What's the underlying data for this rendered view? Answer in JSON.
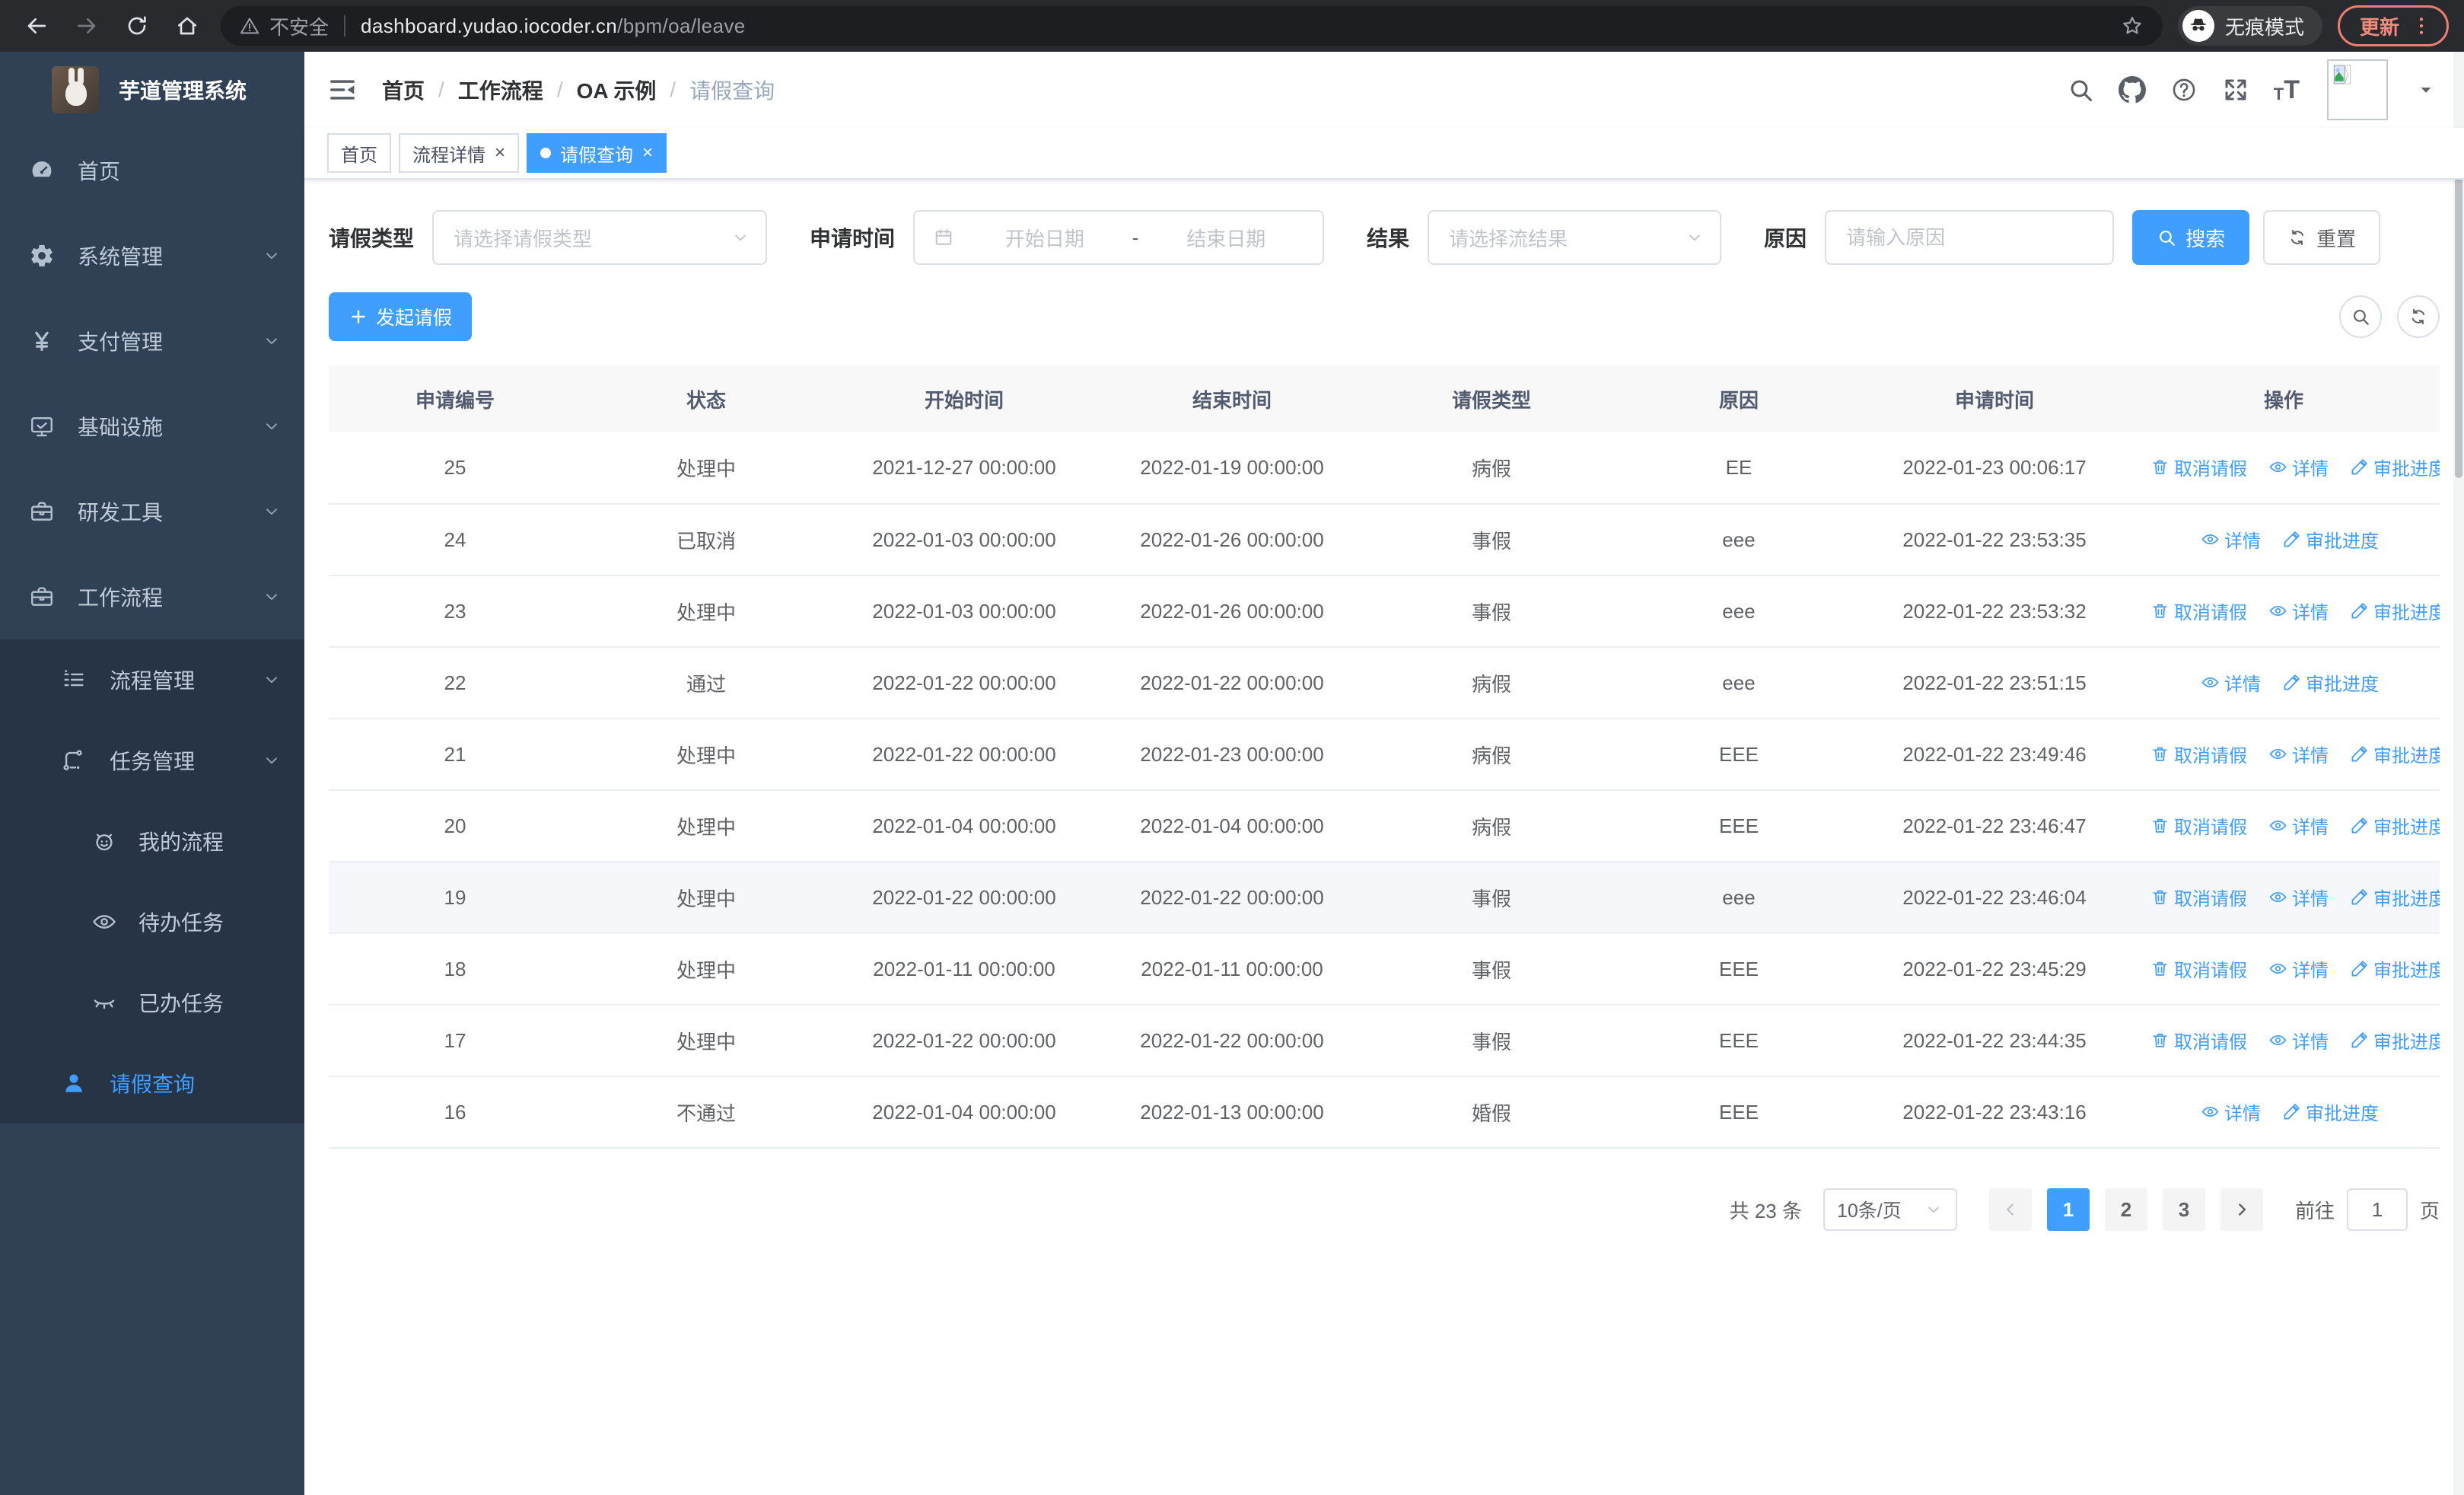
{
  "browser": {
    "security_label": "不安全",
    "url_host": "dashboard.yudao.iocoder.cn",
    "url_path": "/bpm/oa/leave",
    "incognito_label": "无痕模式",
    "update_label": "更新"
  },
  "sidebar": {
    "title": "芋道管理系统",
    "menu": [
      {
        "label": "首页",
        "icon": "dashboard",
        "level": 1,
        "sub": false,
        "active": false,
        "arrow": ""
      },
      {
        "label": "系统管理",
        "icon": "gear",
        "level": 1,
        "sub": false,
        "active": false,
        "arrow": "down"
      },
      {
        "label": "支付管理",
        "icon": "yuan",
        "level": 1,
        "sub": false,
        "active": false,
        "arrow": "down"
      },
      {
        "label": "基础设施",
        "icon": "monitor",
        "level": 1,
        "sub": false,
        "active": false,
        "arrow": "down"
      },
      {
        "label": "研发工具",
        "icon": "toolbox",
        "level": 1,
        "sub": false,
        "active": false,
        "arrow": "down"
      },
      {
        "label": "工作流程",
        "icon": "briefcase",
        "level": 1,
        "sub": false,
        "active": false,
        "arrow": "up"
      },
      {
        "label": "流程管理",
        "icon": "list",
        "level": 2,
        "sub": true,
        "active": false,
        "arrow": "down"
      },
      {
        "label": "任务管理",
        "icon": "flow",
        "level": 2,
        "sub": true,
        "active": false,
        "arrow": "up"
      },
      {
        "label": "我的流程",
        "icon": "face",
        "level": 3,
        "sub": true,
        "active": false,
        "arrow": ""
      },
      {
        "label": "待办任务",
        "icon": "eye",
        "level": 3,
        "sub": true,
        "active": false,
        "arrow": ""
      },
      {
        "label": "已办任务",
        "icon": "eye-closed",
        "level": 3,
        "sub": true,
        "active": false,
        "arrow": ""
      },
      {
        "label": "请假查询",
        "icon": "user",
        "level": 2,
        "sub": true,
        "active": true,
        "arrow": ""
      }
    ]
  },
  "header": {
    "breadcrumb": [
      "首页",
      "工作流程",
      "OA 示例",
      "请假查询"
    ]
  },
  "tabs": [
    {
      "label": "首页",
      "closable": false,
      "active": false
    },
    {
      "label": "流程详情",
      "closable": true,
      "active": false
    },
    {
      "label": "请假查询",
      "closable": true,
      "active": true
    }
  ],
  "filters": {
    "type_label": "请假类型",
    "type_placeholder": "请选择请假类型",
    "time_label": "申请时间",
    "start_placeholder": "开始日期",
    "range_separator": "-",
    "end_placeholder": "结束日期",
    "result_label": "结果",
    "result_placeholder": "请选择流结果",
    "reason_label": "原因",
    "reason_placeholder": "请输入原因",
    "search_label": "搜索",
    "reset_label": "重置"
  },
  "toolbar": {
    "create_label": "发起请假"
  },
  "table": {
    "columns": [
      "申请编号",
      "状态",
      "开始时间",
      "结束时间",
      "请假类型",
      "原因",
      "申请时间",
      "操作"
    ],
    "action_labels": {
      "cancel": "取消请假",
      "detail": "详情",
      "progress": "审批进度"
    },
    "rows": [
      {
        "id": "25",
        "status": "处理中",
        "start": "2021-12-27 00:00:00",
        "end": "2022-01-19 00:00:00",
        "type": "病假",
        "reason": "EE",
        "apply_time": "2022-01-23 00:06:17",
        "actions": [
          "cancel",
          "detail",
          "progress"
        ],
        "highlight": false
      },
      {
        "id": "24",
        "status": "已取消",
        "start": "2022-01-03 00:00:00",
        "end": "2022-01-26 00:00:00",
        "type": "事假",
        "reason": "eee",
        "apply_time": "2022-01-22 23:53:35",
        "actions": [
          "detail",
          "progress"
        ],
        "highlight": false
      },
      {
        "id": "23",
        "status": "处理中",
        "start": "2022-01-03 00:00:00",
        "end": "2022-01-26 00:00:00",
        "type": "事假",
        "reason": "eee",
        "apply_time": "2022-01-22 23:53:32",
        "actions": [
          "cancel",
          "detail",
          "progress"
        ],
        "highlight": false
      },
      {
        "id": "22",
        "status": "通过",
        "start": "2022-01-22 00:00:00",
        "end": "2022-01-22 00:00:00",
        "type": "病假",
        "reason": "eee",
        "apply_time": "2022-01-22 23:51:15",
        "actions": [
          "detail",
          "progress"
        ],
        "highlight": false
      },
      {
        "id": "21",
        "status": "处理中",
        "start": "2022-01-22 00:00:00",
        "end": "2022-01-23 00:00:00",
        "type": "病假",
        "reason": "EEE",
        "apply_time": "2022-01-22 23:49:46",
        "actions": [
          "cancel",
          "detail",
          "progress"
        ],
        "highlight": false
      },
      {
        "id": "20",
        "status": "处理中",
        "start": "2022-01-04 00:00:00",
        "end": "2022-01-04 00:00:00",
        "type": "病假",
        "reason": "EEE",
        "apply_time": "2022-01-22 23:46:47",
        "actions": [
          "cancel",
          "detail",
          "progress"
        ],
        "highlight": false
      },
      {
        "id": "19",
        "status": "处理中",
        "start": "2022-01-22 00:00:00",
        "end": "2022-01-22 00:00:00",
        "type": "事假",
        "reason": "eee",
        "apply_time": "2022-01-22 23:46:04",
        "actions": [
          "cancel",
          "detail",
          "progress"
        ],
        "highlight": true
      },
      {
        "id": "18",
        "status": "处理中",
        "start": "2022-01-11 00:00:00",
        "end": "2022-01-11 00:00:00",
        "type": "事假",
        "reason": "EEE",
        "apply_time": "2022-01-22 23:45:29",
        "actions": [
          "cancel",
          "detail",
          "progress"
        ],
        "highlight": false
      },
      {
        "id": "17",
        "status": "处理中",
        "start": "2022-01-22 00:00:00",
        "end": "2022-01-22 00:00:00",
        "type": "事假",
        "reason": "EEE",
        "apply_time": "2022-01-22 23:44:35",
        "actions": [
          "cancel",
          "detail",
          "progress"
        ],
        "highlight": false
      },
      {
        "id": "16",
        "status": "不通过",
        "start": "2022-01-04 00:00:00",
        "end": "2022-01-13 00:00:00",
        "type": "婚假",
        "reason": "EEE",
        "apply_time": "2022-01-22 23:43:16",
        "actions": [
          "detail",
          "progress"
        ],
        "highlight": false
      }
    ]
  },
  "pagination": {
    "total_label": "共 23 条",
    "page_size_label": "10条/页",
    "pages": [
      "1",
      "2",
      "3"
    ],
    "current_page": "1",
    "goto_label": "前往",
    "goto_value": "1",
    "goto_suffix": "页"
  },
  "colors": {
    "accent": "#409eff",
    "sidebar_bg": "#304156",
    "submenu_bg": "#263445",
    "update_button": "#f18a7f"
  }
}
